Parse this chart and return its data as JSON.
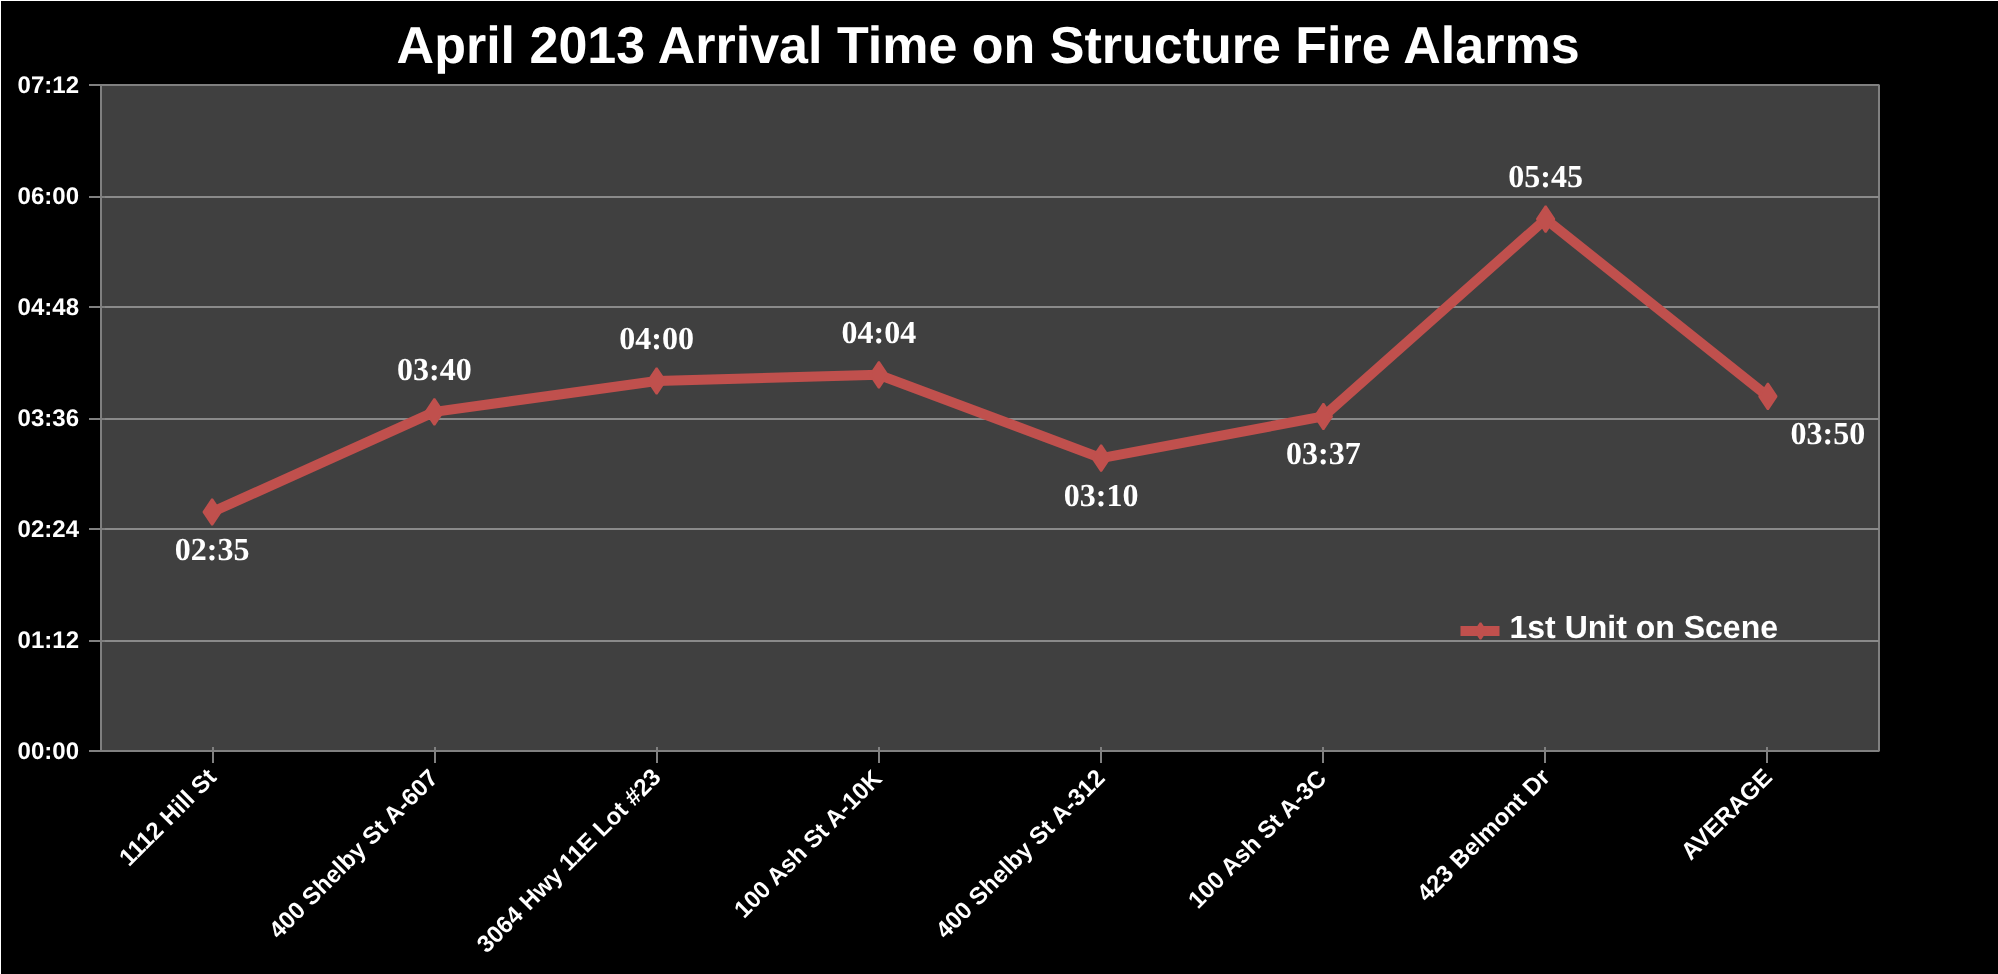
{
  "chart_data": {
    "type": "line",
    "title": "April 2013 Arrival Time on Structure Fire Alarms",
    "categories": [
      "1112 Hill St",
      "400 Shelby St A-607",
      "3064 Hwy 11E Lot #23",
      "100 Ash St A-10K",
      "400 Shelby St A-312",
      "100 Ash St A-3C",
      "423 Belmont Dr",
      "AVERAGE"
    ],
    "series": [
      {
        "name": "1st Unit on Scene",
        "color": "#c0504d",
        "values": [
          2.5833,
          3.6667,
          4.0,
          4.0667,
          3.1667,
          3.6167,
          5.75,
          3.8333
        ],
        "value_labels": [
          "02:35",
          "03:40",
          "04:00",
          "04:04",
          "03:10",
          "03:37",
          "05:45",
          "03:50"
        ]
      }
    ],
    "ylim": [
      0,
      7.2
    ],
    "yticks": [
      {
        "value": 0,
        "label": "00:00"
      },
      {
        "value": 1.2,
        "label": "01:12"
      },
      {
        "value": 2.4,
        "label": "02:24"
      },
      {
        "value": 3.6,
        "label": "03:36"
      },
      {
        "value": 4.8,
        "label": "04:48"
      },
      {
        "value": 6.0,
        "label": "06:00"
      },
      {
        "value": 7.2,
        "label": "07:12"
      }
    ],
    "grid": "y",
    "legend": "bottom right",
    "marker": "diamond",
    "line_style": "solid"
  }
}
